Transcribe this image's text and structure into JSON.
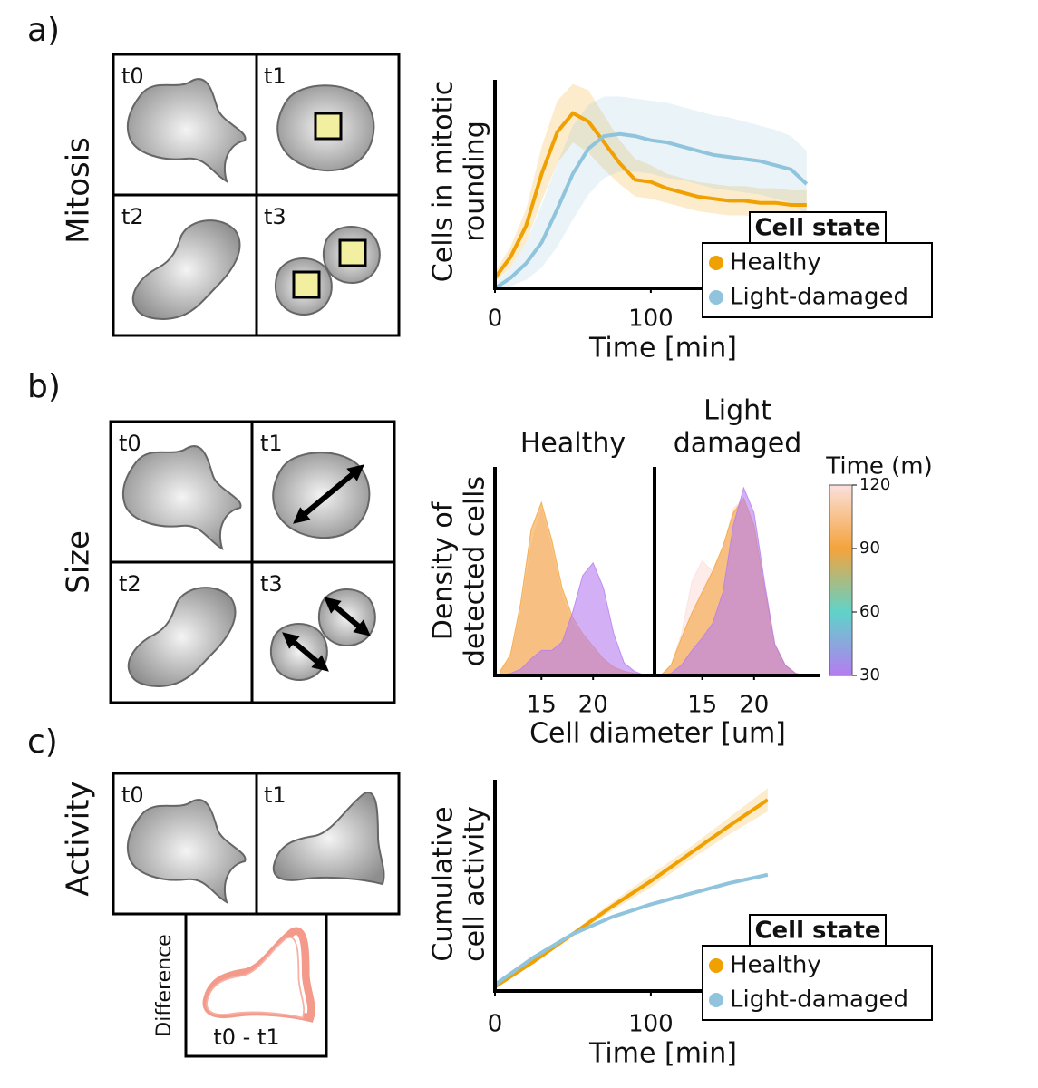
{
  "panels": [
    {
      "label": "a)",
      "row_label": "Mitosis",
      "frames": [
        "t0",
        "t1",
        "t2",
        "t3"
      ]
    },
    {
      "label": "b)",
      "row_label": "Size",
      "frames": [
        "t0",
        "t1",
        "t2",
        "t3"
      ]
    },
    {
      "label": "c)",
      "row_label": "Activity",
      "frames": [
        "t0",
        "t1"
      ],
      "difference": {
        "label": "Difference",
        "frame": "t0 - t1"
      }
    }
  ],
  "chart_data": [
    {
      "type": "line",
      "xlabel": "Time [min]",
      "ylabel": [
        "Cells in mitotic",
        "rounding"
      ],
      "x": [
        0,
        10,
        20,
        30,
        40,
        50,
        60,
        70,
        80,
        90,
        100,
        110,
        120,
        130,
        140,
        150,
        160,
        170,
        180,
        190,
        200
      ],
      "xlim": [
        0,
        210
      ],
      "xticks": [
        0,
        100
      ],
      "ylim": [
        0,
        1
      ],
      "legend_title": "Cell state",
      "legend": "lower right",
      "series": [
        {
          "name": "Healthy",
          "color": "#f0a000",
          "values": [
            0.05,
            0.15,
            0.3,
            0.55,
            0.75,
            0.84,
            0.8,
            0.7,
            0.6,
            0.52,
            0.51,
            0.48,
            0.46,
            0.44,
            0.43,
            0.42,
            0.42,
            0.41,
            0.41,
            0.4,
            0.4
          ],
          "upper": [
            0.08,
            0.2,
            0.38,
            0.68,
            0.9,
            0.98,
            0.95,
            0.83,
            0.71,
            0.62,
            0.59,
            0.55,
            0.53,
            0.51,
            0.5,
            0.49,
            0.49,
            0.48,
            0.48,
            0.47,
            0.47
          ],
          "lower": [
            0.03,
            0.1,
            0.22,
            0.42,
            0.6,
            0.7,
            0.65,
            0.57,
            0.5,
            0.44,
            0.43,
            0.41,
            0.39,
            0.37,
            0.36,
            0.35,
            0.35,
            0.34,
            0.34,
            0.33,
            0.33
          ]
        },
        {
          "name": "Light-damaged",
          "color": "#8fc4dc",
          "values": [
            0,
            0.05,
            0.12,
            0.22,
            0.38,
            0.55,
            0.67,
            0.73,
            0.74,
            0.73,
            0.71,
            0.7,
            0.68,
            0.66,
            0.64,
            0.63,
            0.62,
            0.61,
            0.59,
            0.57,
            0.5
          ],
          "upper": [
            0.02,
            0.1,
            0.22,
            0.4,
            0.6,
            0.78,
            0.88,
            0.92,
            0.92,
            0.91,
            0.9,
            0.89,
            0.87,
            0.85,
            0.83,
            0.82,
            0.8,
            0.78,
            0.76,
            0.73,
            0.66
          ],
          "lower": [
            0,
            0.01,
            0.04,
            0.1,
            0.2,
            0.33,
            0.45,
            0.53,
            0.56,
            0.56,
            0.55,
            0.53,
            0.52,
            0.5,
            0.48,
            0.47,
            0.46,
            0.45,
            0.43,
            0.41,
            0.35
          ]
        }
      ]
    },
    {
      "type": "density",
      "xlabel": "Cell diameter [um]",
      "ylabel": [
        "Density of",
        "detected cells"
      ],
      "x": [
        11,
        12,
        13,
        14,
        15,
        16,
        17,
        18,
        19,
        20,
        21,
        22,
        23,
        24,
        25
      ],
      "ylim": [
        0,
        1
      ],
      "colorbar": {
        "label": "Time (m)",
        "lim": [
          30,
          120
        ],
        "ticks": [
          30,
          60,
          90,
          120
        ],
        "colors": [
          "#b57cf0",
          "#5fd3c9",
          "#f4a33c",
          "#fbe0dc"
        ]
      },
      "panels": [
        {
          "title": [
            "Healthy"
          ],
          "xlim": [
            10.5,
            25.6
          ],
          "xticks": [
            15,
            20
          ],
          "series": [
            {
              "time": 120,
              "values": [
                0.02,
                0.08,
                0.3,
                0.62,
                0.8,
                0.6,
                0.38,
                0.25,
                0.18,
                0.12,
                0.08,
                0.04,
                0.02,
                0.01,
                0
              ]
            },
            {
              "time": 90,
              "values": [
                0.02,
                0.1,
                0.35,
                0.7,
                0.83,
                0.65,
                0.42,
                0.28,
                0.2,
                0.14,
                0.08,
                0.04,
                0.02,
                0.01,
                0
              ]
            },
            {
              "time": 30,
              "values": [
                0,
                0.01,
                0.03,
                0.08,
                0.12,
                0.12,
                0.16,
                0.3,
                0.48,
                0.54,
                0.42,
                0.2,
                0.06,
                0.02,
                0
              ]
            }
          ]
        },
        {
          "title": [
            "Light",
            "damaged"
          ],
          "xlim": [
            10.4,
            26.4
          ],
          "xticks": [
            15,
            20
          ],
          "series": [
            {
              "time": 120,
              "values": [
                0,
                0.05,
                0.2,
                0.45,
                0.55,
                0.5,
                0.6,
                0.8,
                0.85,
                0.7,
                0.4,
                0.15,
                0.05,
                0.01,
                0
              ]
            },
            {
              "time": 90,
              "values": [
                0,
                0.05,
                0.18,
                0.3,
                0.4,
                0.5,
                0.62,
                0.78,
                0.85,
                0.72,
                0.42,
                0.15,
                0.05,
                0.01,
                0
              ]
            },
            {
              "time": 30,
              "values": [
                0,
                0.01,
                0.05,
                0.12,
                0.18,
                0.25,
                0.4,
                0.72,
                0.9,
                0.78,
                0.45,
                0.15,
                0.05,
                0.01,
                0
              ]
            }
          ]
        }
      ]
    },
    {
      "type": "line",
      "xlabel": "Time [min]",
      "ylabel": [
        "Cumulative",
        "cell activity"
      ],
      "x": [
        0,
        25,
        50,
        75,
        100,
        125,
        150,
        175
      ],
      "xlim": [
        0,
        210
      ],
      "xticks": [
        0,
        100
      ],
      "ylim": [
        0,
        1
      ],
      "legend_title": "Cell state",
      "legend": "lower right",
      "series": [
        {
          "name": "Healthy",
          "color": "#f0a000",
          "values": [
            0.02,
            0.14,
            0.27,
            0.4,
            0.52,
            0.65,
            0.78,
            0.905
          ],
          "upper": [
            0.03,
            0.15,
            0.28,
            0.42,
            0.55,
            0.68,
            0.82,
            0.96
          ],
          "lower": [
            0.01,
            0.13,
            0.26,
            0.38,
            0.49,
            0.62,
            0.74,
            0.85
          ]
        },
        {
          "name": "Light-damaged",
          "color": "#8fc4dc",
          "values": [
            0.03,
            0.16,
            0.27,
            0.35,
            0.41,
            0.46,
            0.51,
            0.55
          ],
          "upper": [
            0.04,
            0.17,
            0.28,
            0.36,
            0.42,
            0.47,
            0.52,
            0.56
          ],
          "lower": [
            0.02,
            0.15,
            0.26,
            0.34,
            0.4,
            0.45,
            0.5,
            0.54
          ]
        }
      ]
    }
  ]
}
